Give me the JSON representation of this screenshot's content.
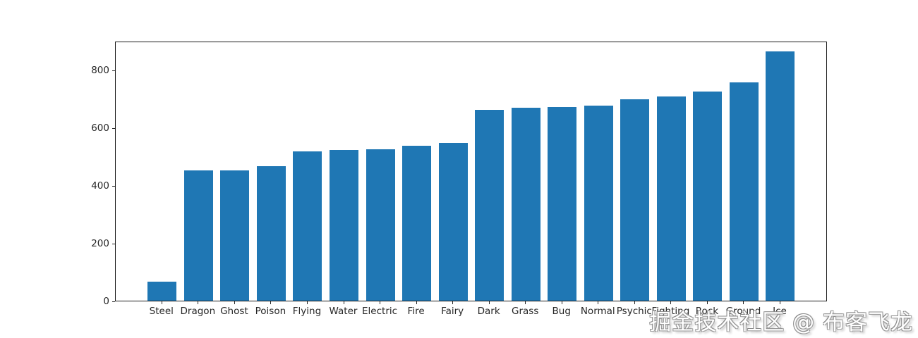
{
  "chart_data": {
    "type": "bar",
    "categories": [
      "Steel",
      "Dragon",
      "Ghost",
      "Poison",
      "Flying",
      "Water",
      "Electric",
      "Fire",
      "Fairy",
      "Dark",
      "Grass",
      "Bug",
      "Normal",
      "Psychic",
      "Fighting",
      "Rock",
      "Ground",
      "Ice"
    ],
    "values": [
      65,
      452,
      452,
      466,
      517,
      522,
      526,
      538,
      546,
      662,
      668,
      672,
      676,
      699,
      708,
      726,
      756,
      864
    ],
    "title": "",
    "xlabel": "",
    "ylabel": "",
    "ylim": [
      0,
      901
    ],
    "yticks": [
      0,
      200,
      400,
      600,
      800
    ],
    "grid": false,
    "legend_position": "none",
    "bar_color": "#1f77b4"
  },
  "colors": {
    "bar": "#1f77b4",
    "spine": "#1a1a1a",
    "tick_text": "#262626",
    "background": "#ffffff"
  },
  "watermark": {
    "text": "掘金技术社区 @ 布客飞龙"
  }
}
